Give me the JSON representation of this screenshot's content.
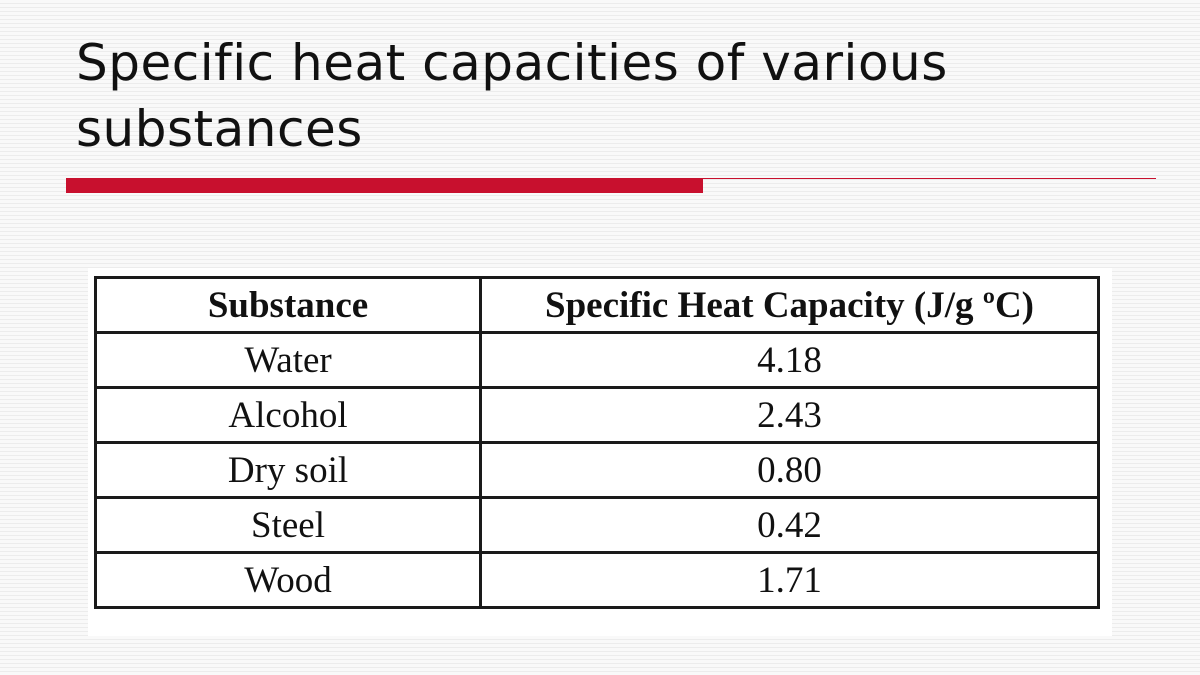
{
  "slide": {
    "title": "Specific heat capacities of various substances",
    "accent_color": "#c8102e"
  },
  "table": {
    "headers": [
      "Substance",
      "Specific Heat Capacity (J/g ºC)"
    ],
    "rows": [
      [
        "Water",
        "4.18"
      ],
      [
        "Alcohol",
        "2.43"
      ],
      [
        "Dry soil",
        "0.80"
      ],
      [
        "Steel",
        "0.42"
      ],
      [
        "Wood",
        "1.71"
      ]
    ]
  },
  "chart_data": {
    "type": "table",
    "title": "Specific heat capacities of various substances",
    "columns": [
      "Substance",
      "Specific Heat Capacity (J/g ºC)"
    ],
    "categories": [
      "Water",
      "Alcohol",
      "Dry soil",
      "Steel",
      "Wood"
    ],
    "values": [
      4.18,
      2.43,
      0.8,
      0.42,
      1.71
    ],
    "ylabel": "Specific Heat Capacity (J/g ºC)"
  }
}
